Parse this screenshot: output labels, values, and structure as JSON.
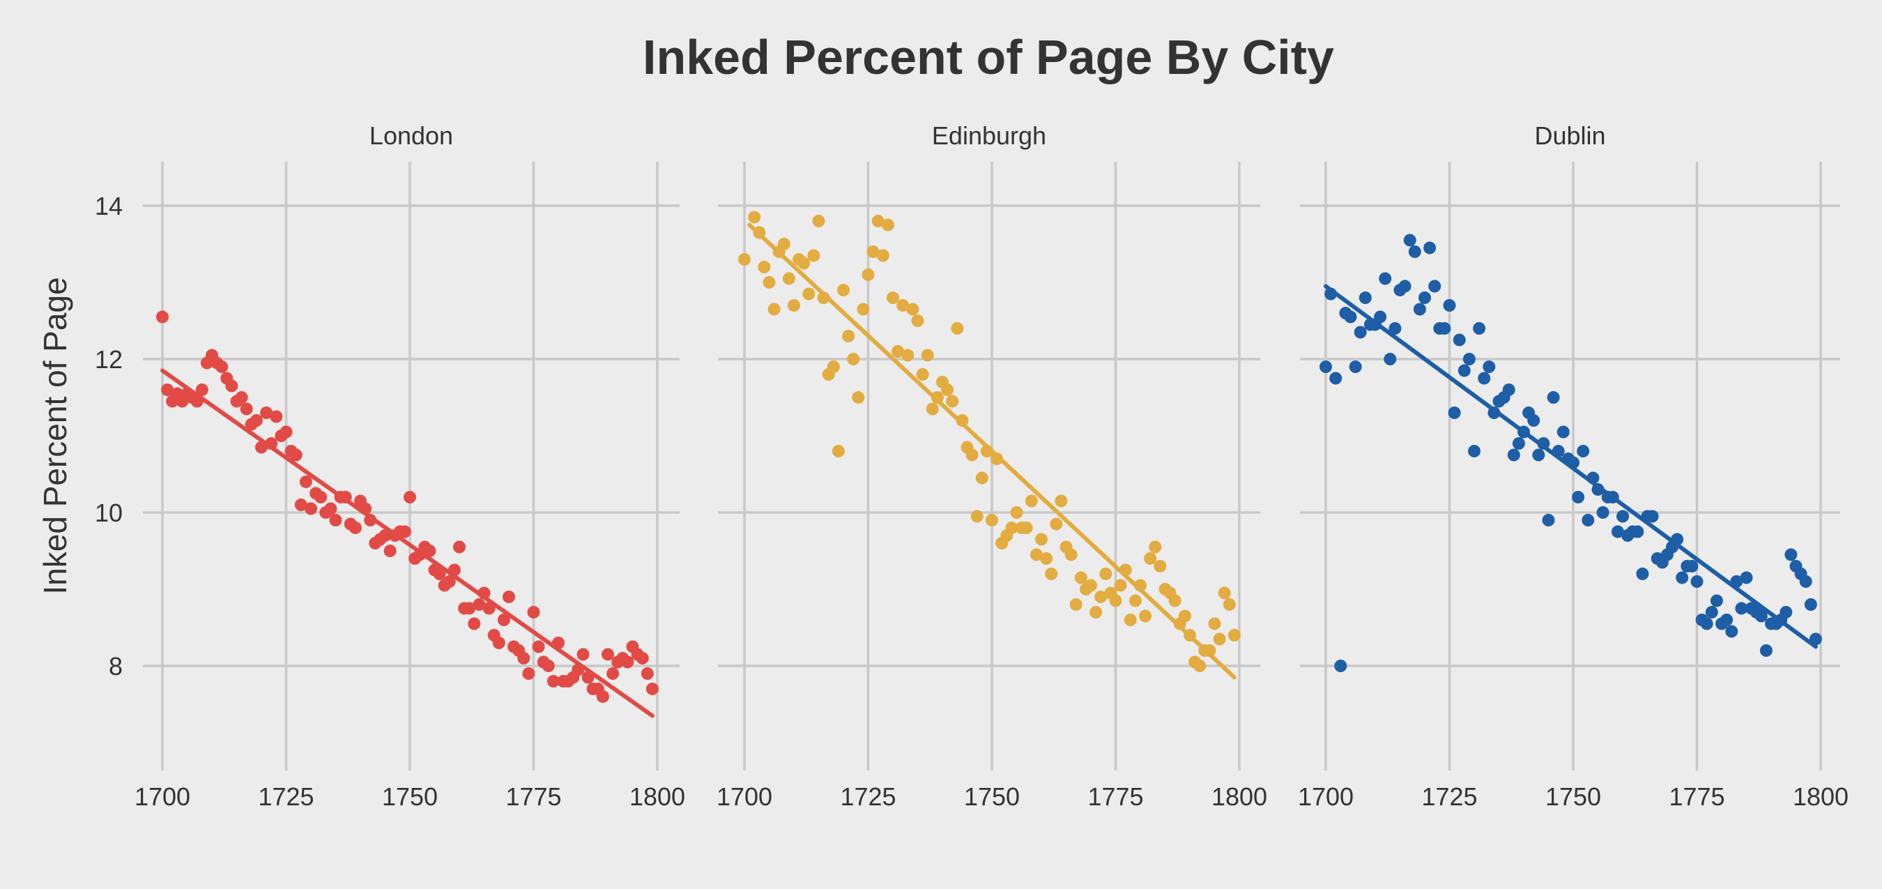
{
  "chart_data": {
    "type": "scatter",
    "title": "Inked Percent of Page By City",
    "xlabel": "",
    "ylabel": "Inked Percent of Page",
    "xlim": [
      1700,
      1800
    ],
    "ylim": [
      6.8,
      14.6
    ],
    "x_ticks": [
      "1700",
      "1725",
      "1750",
      "1775",
      "1800"
    ],
    "y_ticks": [
      "8",
      "10",
      "12",
      "14"
    ],
    "grid": true,
    "layout": "facets",
    "facets": [
      {
        "name": "London",
        "color": "#e24a46",
        "trend": [
          [
            1700,
            11.85
          ],
          [
            1799,
            7.35
          ]
        ],
        "points": [
          [
            1700,
            12.55
          ],
          [
            1701,
            11.6
          ],
          [
            1702,
            11.45
          ],
          [
            1703,
            11.55
          ],
          [
            1704,
            11.45
          ],
          [
            1705,
            11.55
          ],
          [
            1706,
            11.5
          ],
          [
            1707,
            11.45
          ],
          [
            1708,
            11.6
          ],
          [
            1709,
            11.95
          ],
          [
            1710,
            12.05
          ],
          [
            1711,
            11.95
          ],
          [
            1712,
            11.9
          ],
          [
            1713,
            11.75
          ],
          [
            1714,
            11.65
          ],
          [
            1715,
            11.45
          ],
          [
            1716,
            11.5
          ],
          [
            1717,
            11.35
          ],
          [
            1718,
            11.15
          ],
          [
            1719,
            11.2
          ],
          [
            1720,
            10.85
          ],
          [
            1721,
            11.3
          ],
          [
            1722,
            10.9
          ],
          [
            1723,
            11.25
          ],
          [
            1724,
            11.0
          ],
          [
            1725,
            11.05
          ],
          [
            1726,
            10.8
          ],
          [
            1727,
            10.75
          ],
          [
            1728,
            10.1
          ],
          [
            1729,
            10.4
          ],
          [
            1730,
            10.05
          ],
          [
            1731,
            10.25
          ],
          [
            1732,
            10.2
          ],
          [
            1733,
            10.0
          ],
          [
            1734,
            10.05
          ],
          [
            1735,
            9.9
          ],
          [
            1736,
            10.2
          ],
          [
            1737,
            10.2
          ],
          [
            1738,
            9.85
          ],
          [
            1739,
            9.8
          ],
          [
            1740,
            10.15
          ],
          [
            1741,
            10.05
          ],
          [
            1742,
            9.9
          ],
          [
            1743,
            9.6
          ],
          [
            1744,
            9.65
          ],
          [
            1745,
            9.7
          ],
          [
            1746,
            9.5
          ],
          [
            1747,
            9.7
          ],
          [
            1748,
            9.75
          ],
          [
            1749,
            9.75
          ],
          [
            1750,
            10.2
          ],
          [
            1751,
            9.4
          ],
          [
            1752,
            9.45
          ],
          [
            1753,
            9.55
          ],
          [
            1754,
            9.5
          ],
          [
            1755,
            9.25
          ],
          [
            1756,
            9.2
          ],
          [
            1757,
            9.05
          ],
          [
            1758,
            9.1
          ],
          [
            1759,
            9.25
          ],
          [
            1760,
            9.55
          ],
          [
            1761,
            8.75
          ],
          [
            1762,
            8.75
          ],
          [
            1763,
            8.55
          ],
          [
            1764,
            8.8
          ],
          [
            1765,
            8.95
          ],
          [
            1766,
            8.75
          ],
          [
            1767,
            8.4
          ],
          [
            1768,
            8.3
          ],
          [
            1769,
            8.6
          ],
          [
            1770,
            8.9
          ],
          [
            1771,
            8.25
          ],
          [
            1772,
            8.2
          ],
          [
            1773,
            8.1
          ],
          [
            1774,
            7.9
          ],
          [
            1775,
            8.7
          ],
          [
            1776,
            8.25
          ],
          [
            1777,
            8.05
          ],
          [
            1778,
            8.0
          ],
          [
            1779,
            7.8
          ],
          [
            1780,
            8.3
          ],
          [
            1781,
            7.8
          ],
          [
            1782,
            7.8
          ],
          [
            1783,
            7.85
          ],
          [
            1784,
            7.95
          ],
          [
            1785,
            8.15
          ],
          [
            1786,
            7.85
          ],
          [
            1787,
            7.7
          ],
          [
            1788,
            7.7
          ],
          [
            1789,
            7.6
          ],
          [
            1790,
            8.15
          ],
          [
            1791,
            7.9
          ],
          [
            1792,
            8.05
          ],
          [
            1793,
            8.1
          ],
          [
            1794,
            8.05
          ],
          [
            1795,
            8.25
          ],
          [
            1796,
            8.15
          ],
          [
            1797,
            8.1
          ],
          [
            1798,
            7.9
          ],
          [
            1799,
            7.7
          ]
        ]
      },
      {
        "name": "Edinburgh",
        "color": "#e3ac40",
        "trend": [
          [
            1701,
            13.75
          ],
          [
            1799,
            7.85
          ]
        ],
        "points": [
          [
            1700,
            13.3
          ],
          [
            1702,
            13.85
          ],
          [
            1703,
            13.65
          ],
          [
            1704,
            13.2
          ],
          [
            1705,
            13.0
          ],
          [
            1706,
            12.65
          ],
          [
            1707,
            13.4
          ],
          [
            1708,
            13.5
          ],
          [
            1709,
            13.05
          ],
          [
            1710,
            12.7
          ],
          [
            1711,
            13.3
          ],
          [
            1712,
            13.25
          ],
          [
            1713,
            12.85
          ],
          [
            1714,
            13.35
          ],
          [
            1715,
            13.8
          ],
          [
            1716,
            12.8
          ],
          [
            1717,
            11.8
          ],
          [
            1718,
            11.9
          ],
          [
            1719,
            10.8
          ],
          [
            1720,
            12.9
          ],
          [
            1721,
            12.3
          ],
          [
            1722,
            12.0
          ],
          [
            1723,
            11.5
          ],
          [
            1724,
            12.65
          ],
          [
            1725,
            13.1
          ],
          [
            1726,
            13.4
          ],
          [
            1727,
            13.8
          ],
          [
            1728,
            13.35
          ],
          [
            1729,
            13.75
          ],
          [
            1730,
            12.8
          ],
          [
            1731,
            12.1
          ],
          [
            1732,
            12.7
          ],
          [
            1733,
            12.05
          ],
          [
            1734,
            12.65
          ],
          [
            1735,
            12.5
          ],
          [
            1736,
            11.8
          ],
          [
            1737,
            12.05
          ],
          [
            1738,
            11.35
          ],
          [
            1739,
            11.5
          ],
          [
            1740,
            11.7
          ],
          [
            1741,
            11.6
          ],
          [
            1742,
            11.45
          ],
          [
            1743,
            12.4
          ],
          [
            1744,
            11.2
          ],
          [
            1745,
            10.85
          ],
          [
            1746,
            10.75
          ],
          [
            1747,
            9.95
          ],
          [
            1748,
            10.45
          ],
          [
            1749,
            10.8
          ],
          [
            1750,
            9.9
          ],
          [
            1751,
            10.7
          ],
          [
            1752,
            9.6
          ],
          [
            1753,
            9.7
          ],
          [
            1754,
            9.8
          ],
          [
            1755,
            10.0
          ],
          [
            1756,
            9.8
          ],
          [
            1757,
            9.8
          ],
          [
            1758,
            10.15
          ],
          [
            1759,
            9.45
          ],
          [
            1760,
            9.65
          ],
          [
            1761,
            9.4
          ],
          [
            1762,
            9.2
          ],
          [
            1763,
            9.85
          ],
          [
            1764,
            10.15
          ],
          [
            1765,
            9.55
          ],
          [
            1766,
            9.45
          ],
          [
            1767,
            8.8
          ],
          [
            1768,
            9.15
          ],
          [
            1769,
            9.0
          ],
          [
            1770,
            9.05
          ],
          [
            1771,
            8.7
          ],
          [
            1772,
            8.9
          ],
          [
            1773,
            9.2
          ],
          [
            1774,
            8.95
          ],
          [
            1775,
            8.85
          ],
          [
            1776,
            9.05
          ],
          [
            1777,
            9.25
          ],
          [
            1778,
            8.6
          ],
          [
            1779,
            8.85
          ],
          [
            1780,
            9.05
          ],
          [
            1781,
            8.65
          ],
          [
            1782,
            9.4
          ],
          [
            1783,
            9.55
          ],
          [
            1784,
            9.3
          ],
          [
            1785,
            9.0
          ],
          [
            1786,
            8.95
          ],
          [
            1787,
            8.85
          ],
          [
            1788,
            8.55
          ],
          [
            1789,
            8.65
          ],
          [
            1790,
            8.4
          ],
          [
            1791,
            8.05
          ],
          [
            1792,
            8.0
          ],
          [
            1793,
            8.2
          ],
          [
            1794,
            8.2
          ],
          [
            1795,
            8.55
          ],
          [
            1796,
            8.35
          ],
          [
            1797,
            8.95
          ],
          [
            1798,
            8.8
          ],
          [
            1799,
            8.4
          ]
        ]
      },
      {
        "name": "Dublin",
        "color": "#1d5ea6",
        "trend": [
          [
            1700,
            12.95
          ],
          [
            1799,
            8.25
          ]
        ],
        "points": [
          [
            1700,
            11.9
          ],
          [
            1701,
            12.85
          ],
          [
            1702,
            11.75
          ],
          [
            1703,
            8.0
          ],
          [
            1704,
            12.6
          ],
          [
            1705,
            12.55
          ],
          [
            1706,
            11.9
          ],
          [
            1707,
            12.35
          ],
          [
            1708,
            12.8
          ],
          [
            1709,
            12.45
          ],
          [
            1710,
            12.45
          ],
          [
            1711,
            12.55
          ],
          [
            1712,
            13.05
          ],
          [
            1713,
            12.0
          ],
          [
            1714,
            12.4
          ],
          [
            1715,
            12.9
          ],
          [
            1716,
            12.95
          ],
          [
            1717,
            13.55
          ],
          [
            1718,
            13.4
          ],
          [
            1719,
            12.65
          ],
          [
            1720,
            12.8
          ],
          [
            1721,
            13.45
          ],
          [
            1722,
            12.95
          ],
          [
            1723,
            12.4
          ],
          [
            1724,
            12.4
          ],
          [
            1725,
            12.7
          ],
          [
            1726,
            11.3
          ],
          [
            1727,
            12.25
          ],
          [
            1728,
            11.85
          ],
          [
            1729,
            12.0
          ],
          [
            1730,
            10.8
          ],
          [
            1731,
            12.4
          ],
          [
            1732,
            11.75
          ],
          [
            1733,
            11.9
          ],
          [
            1734,
            11.3
          ],
          [
            1735,
            11.45
          ],
          [
            1736,
            11.5
          ],
          [
            1737,
            11.6
          ],
          [
            1738,
            10.75
          ],
          [
            1739,
            10.9
          ],
          [
            1740,
            11.05
          ],
          [
            1741,
            11.3
          ],
          [
            1742,
            11.2
          ],
          [
            1743,
            10.75
          ],
          [
            1744,
            10.9
          ],
          [
            1745,
            9.9
          ],
          [
            1746,
            11.5
          ],
          [
            1747,
            10.8
          ],
          [
            1748,
            11.05
          ],
          [
            1749,
            10.7
          ],
          [
            1750,
            10.65
          ],
          [
            1751,
            10.2
          ],
          [
            1752,
            10.8
          ],
          [
            1753,
            9.9
          ],
          [
            1754,
            10.45
          ],
          [
            1755,
            10.3
          ],
          [
            1756,
            10.0
          ],
          [
            1757,
            10.2
          ],
          [
            1758,
            10.2
          ],
          [
            1759,
            9.75
          ],
          [
            1760,
            9.95
          ],
          [
            1761,
            9.7
          ],
          [
            1762,
            9.75
          ],
          [
            1763,
            9.75
          ],
          [
            1764,
            9.2
          ],
          [
            1765,
            9.95
          ],
          [
            1766,
            9.95
          ],
          [
            1767,
            9.4
          ],
          [
            1768,
            9.35
          ],
          [
            1769,
            9.45
          ],
          [
            1770,
            9.55
          ],
          [
            1771,
            9.65
          ],
          [
            1772,
            9.15
          ],
          [
            1773,
            9.3
          ],
          [
            1774,
            9.3
          ],
          [
            1775,
            9.1
          ],
          [
            1776,
            8.6
          ],
          [
            1777,
            8.55
          ],
          [
            1778,
            8.7
          ],
          [
            1779,
            8.85
          ],
          [
            1780,
            8.55
          ],
          [
            1781,
            8.6
          ],
          [
            1782,
            8.45
          ],
          [
            1783,
            9.1
          ],
          [
            1784,
            8.75
          ],
          [
            1785,
            9.15
          ],
          [
            1786,
            8.75
          ],
          [
            1787,
            8.7
          ],
          [
            1788,
            8.65
          ],
          [
            1789,
            8.2
          ],
          [
            1790,
            8.55
          ],
          [
            1791,
            8.55
          ],
          [
            1792,
            8.6
          ],
          [
            1793,
            8.7
          ],
          [
            1794,
            9.45
          ],
          [
            1795,
            9.3
          ],
          [
            1796,
            9.2
          ],
          [
            1797,
            9.1
          ],
          [
            1798,
            8.8
          ],
          [
            1799,
            8.35
          ]
        ]
      }
    ]
  }
}
